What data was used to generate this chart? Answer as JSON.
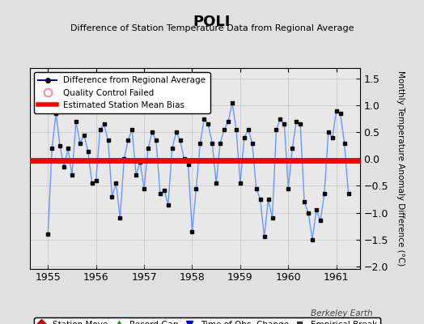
{
  "title": "POLI",
  "subtitle": "Difference of Station Temperature Data from Regional Average",
  "ylabel": "Monthly Temperature Anomaly Difference (°C)",
  "bias": -0.03,
  "xlim": [
    1954.62,
    1961.5
  ],
  "ylim": [
    -2.05,
    1.7
  ],
  "yticks": [
    -2.0,
    -1.5,
    -1.0,
    -0.5,
    0.0,
    0.5,
    1.0,
    1.5
  ],
  "xticks": [
    1955,
    1956,
    1957,
    1958,
    1959,
    1960,
    1961
  ],
  "bg_color": "#e8e8e8",
  "fig_color": "#e0e0e0",
  "line_color": "#6699ff",
  "marker_color": "#000000",
  "bias_color": "#ff0000",
  "data_x": [
    1955.0,
    1955.083,
    1955.167,
    1955.25,
    1955.333,
    1955.417,
    1955.5,
    1955.583,
    1955.667,
    1955.75,
    1955.833,
    1955.917,
    1956.0,
    1956.083,
    1956.167,
    1956.25,
    1956.333,
    1956.417,
    1956.5,
    1956.583,
    1956.667,
    1956.75,
    1956.833,
    1956.917,
    1957.0,
    1957.083,
    1957.167,
    1957.25,
    1957.333,
    1957.417,
    1957.5,
    1957.583,
    1957.667,
    1957.75,
    1957.833,
    1957.917,
    1958.0,
    1958.083,
    1958.167,
    1958.25,
    1958.333,
    1958.417,
    1958.5,
    1958.583,
    1958.667,
    1958.75,
    1958.833,
    1958.917,
    1959.0,
    1959.083,
    1959.167,
    1959.25,
    1959.333,
    1959.417,
    1959.5,
    1959.583,
    1959.667,
    1959.75,
    1959.833,
    1959.917,
    1960.0,
    1960.083,
    1960.167,
    1960.25,
    1960.333,
    1960.417,
    1960.5,
    1960.583,
    1960.667,
    1960.75,
    1960.833,
    1960.917,
    1961.0,
    1961.083,
    1961.167,
    1961.25
  ],
  "data_y": [
    -1.4,
    0.2,
    0.85,
    0.25,
    -0.15,
    0.2,
    -0.3,
    0.7,
    0.3,
    0.45,
    0.15,
    -0.45,
    -0.4,
    0.55,
    0.65,
    0.35,
    -0.7,
    -0.45,
    -1.1,
    0.0,
    0.35,
    0.55,
    -0.3,
    -0.05,
    -0.55,
    0.2,
    0.5,
    0.35,
    -0.65,
    -0.58,
    -0.85,
    0.2,
    0.5,
    0.35,
    -0.0,
    -0.1,
    -1.35,
    -0.55,
    0.3,
    0.75,
    0.65,
    0.3,
    -0.45,
    0.3,
    0.55,
    0.7,
    1.05,
    0.55,
    -0.45,
    0.4,
    0.55,
    0.3,
    -0.55,
    -0.75,
    -1.45,
    -0.75,
    -1.1,
    0.55,
    0.75,
    0.65,
    -0.55,
    0.2,
    0.7,
    0.65,
    -0.8,
    -1.0,
    -1.5,
    -0.95,
    -1.15,
    -0.65,
    0.5,
    0.4,
    0.9,
    0.85,
    0.3,
    -0.65
  ],
  "watermark": "Berkeley Earth"
}
